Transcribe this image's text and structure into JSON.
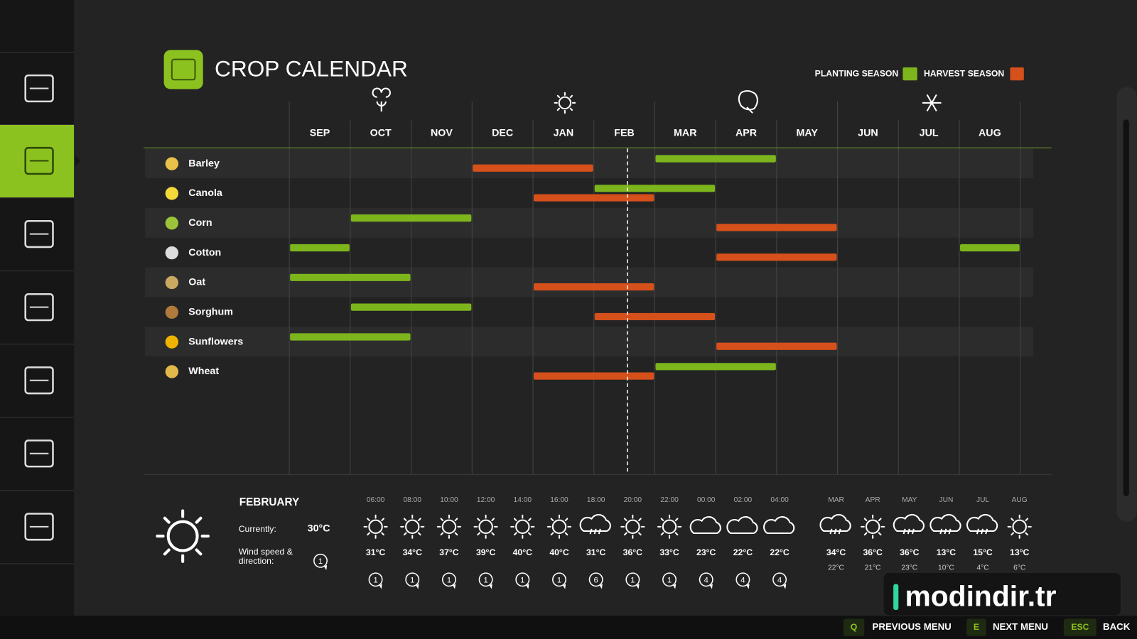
{
  "header": {
    "title": "CROP CALENDAR"
  },
  "legend": {
    "planting": {
      "label": "PLANTING SEASON",
      "color": "#7db51c"
    },
    "harvest": {
      "label": "HARVEST SEASON",
      "color": "#d5501a"
    }
  },
  "calendar": {
    "months": [
      "SEP",
      "OCT",
      "NOV",
      "DEC",
      "JAN",
      "FEB",
      "MAR",
      "APR",
      "MAY",
      "JUN",
      "JUL",
      "AUG"
    ],
    "current_position": 5.55,
    "crops": [
      {
        "name": "Barley",
        "planting": [
          [
            6,
            8
          ]
        ],
        "harvest": [
          [
            3,
            5
          ]
        ]
      },
      {
        "name": "Canola",
        "planting": [
          [
            5,
            7
          ]
        ],
        "harvest": [
          [
            4,
            6
          ]
        ]
      },
      {
        "name": "Corn",
        "planting": [
          [
            1,
            3
          ]
        ],
        "harvest": [
          [
            7,
            9
          ]
        ]
      },
      {
        "name": "Cotton",
        "planting": [
          [
            0,
            1
          ],
          [
            11,
            12
          ]
        ],
        "harvest": [
          [
            7,
            9
          ]
        ]
      },
      {
        "name": "Oat",
        "planting": [
          [
            0,
            2
          ]
        ],
        "harvest": [
          [
            4,
            6
          ]
        ]
      },
      {
        "name": "Sorghum",
        "planting": [
          [
            1,
            3
          ]
        ],
        "harvest": [
          [
            5,
            7
          ]
        ]
      },
      {
        "name": "Sunflowers",
        "planting": [
          [
            0,
            2
          ]
        ],
        "harvest": [
          [
            7,
            9
          ]
        ]
      },
      {
        "name": "Wheat",
        "planting": [
          [
            6,
            8
          ]
        ],
        "harvest": [
          [
            4,
            6
          ]
        ]
      }
    ]
  },
  "weather": {
    "month": "FEBRUARY",
    "currently_label": "Currently:",
    "current_temp": "30°C",
    "wind_label": [
      "Wind speed &",
      "direction:"
    ],
    "current_wind": "1",
    "hourly": [
      {
        "time": "06:00",
        "icon": "sun",
        "temp": "31°C",
        "wind": "1"
      },
      {
        "time": "08:00",
        "icon": "sun",
        "temp": "34°C",
        "wind": "1"
      },
      {
        "time": "10:00",
        "icon": "sun",
        "temp": "37°C",
        "wind": "1"
      },
      {
        "time": "12:00",
        "icon": "sun",
        "temp": "39°C",
        "wind": "1"
      },
      {
        "time": "14:00",
        "icon": "sun",
        "temp": "40°C",
        "wind": "1"
      },
      {
        "time": "16:00",
        "icon": "sun",
        "temp": "40°C",
        "wind": "1"
      },
      {
        "time": "18:00",
        "icon": "storm",
        "temp": "31°C",
        "wind": "6"
      },
      {
        "time": "20:00",
        "icon": "sun",
        "temp": "36°C",
        "wind": "1"
      },
      {
        "time": "22:00",
        "icon": "sun",
        "temp": "33°C",
        "wind": "1"
      },
      {
        "time": "00:00",
        "icon": "cloud",
        "temp": "23°C",
        "wind": "4"
      },
      {
        "time": "02:00",
        "icon": "cloud",
        "temp": "22°C",
        "wind": "4"
      },
      {
        "time": "04:00",
        "icon": "cloud",
        "temp": "22°C",
        "wind": "4"
      }
    ],
    "monthly": [
      {
        "month": "MAR",
        "icon": "storm",
        "high": "34°C",
        "low": "22°C"
      },
      {
        "month": "APR",
        "icon": "sun",
        "high": "36°C",
        "low": "21°C"
      },
      {
        "month": "MAY",
        "icon": "storm",
        "high": "36°C",
        "low": "23°C"
      },
      {
        "month": "JUN",
        "icon": "storm",
        "high": "13°C",
        "low": "10°C"
      },
      {
        "month": "JUL",
        "icon": "storm",
        "high": "15°C",
        "low": "4°C"
      },
      {
        "month": "AUG",
        "icon": "sun",
        "high": "13°C",
        "low": "6°C"
      }
    ]
  },
  "footer": [
    {
      "key": "Q",
      "label": "PREVIOUS MENU"
    },
    {
      "key": "E",
      "label": "NEXT MENU"
    },
    {
      "key": "ESC",
      "label": "BACK"
    }
  ],
  "watermark": "modindir.tr"
}
